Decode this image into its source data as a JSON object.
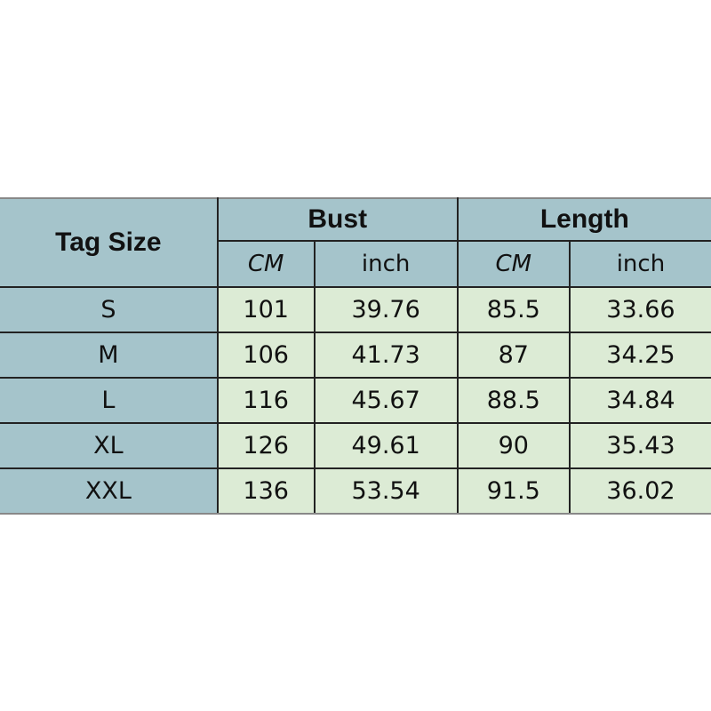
{
  "table": {
    "tag_header": "Tag Size",
    "groups": [
      "Bust",
      "Length"
    ],
    "units": [
      "CM",
      "inch",
      "CM",
      "inch"
    ],
    "rows": [
      [
        "S",
        "101",
        "39.76",
        "85.5",
        "33.66"
      ],
      [
        "M",
        "106",
        "41.73",
        "87",
        "34.25"
      ],
      [
        "L",
        "116",
        "45.67",
        "88.5",
        "34.84"
      ],
      [
        "XL",
        "126",
        "49.61",
        "90",
        "35.43"
      ],
      [
        "XXL",
        "136",
        "53.54",
        "91.5",
        "36.02"
      ]
    ]
  },
  "colors": {
    "header": "#a5c4cb",
    "body": "#dcebd5"
  }
}
